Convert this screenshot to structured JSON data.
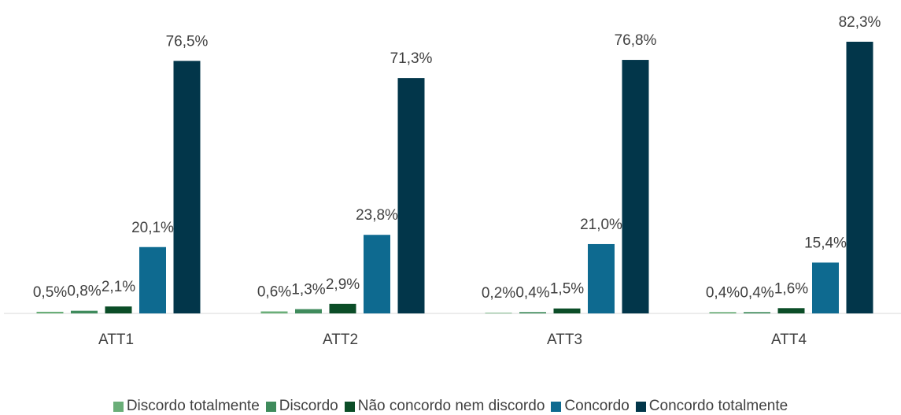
{
  "chart_data": {
    "type": "bar",
    "categories": [
      "ATT1",
      "ATT2",
      "ATT3",
      "ATT4"
    ],
    "series": [
      {
        "name": "Discordo totalmente",
        "color": "#6aae78",
        "values": [
          0.5,
          0.6,
          0.2,
          0.4
        ],
        "value_labels": [
          "0,5%",
          "0,6%",
          "0,2%",
          "0,4%"
        ]
      },
      {
        "name": "Discordo",
        "color": "#3f8b5c",
        "values": [
          0.8,
          1.3,
          0.4,
          0.4
        ],
        "value_labels": [
          "0,8%",
          "1,3%",
          "0,4%",
          "0,4%"
        ]
      },
      {
        "name": "Não concordo nem discordo",
        "color": "#0b4d27",
        "values": [
          2.1,
          2.9,
          1.5,
          1.6
        ],
        "value_labels": [
          "2,1%",
          "2,9%",
          "1,5%",
          "1,6%"
        ]
      },
      {
        "name": "Concordo",
        "color": "#0e6a90",
        "values": [
          20.1,
          23.8,
          21.0,
          15.4
        ],
        "value_labels": [
          "20,1%",
          "23,8%",
          "21,0%",
          "15,4%"
        ]
      },
      {
        "name": "Concordo totalmente",
        "color": "#02364a",
        "values": [
          76.5,
          71.3,
          76.8,
          82.3
        ],
        "value_labels": [
          "76,5%",
          "71,3%",
          "76,8%",
          "82,3%"
        ]
      }
    ],
    "legend": "bottom"
  }
}
